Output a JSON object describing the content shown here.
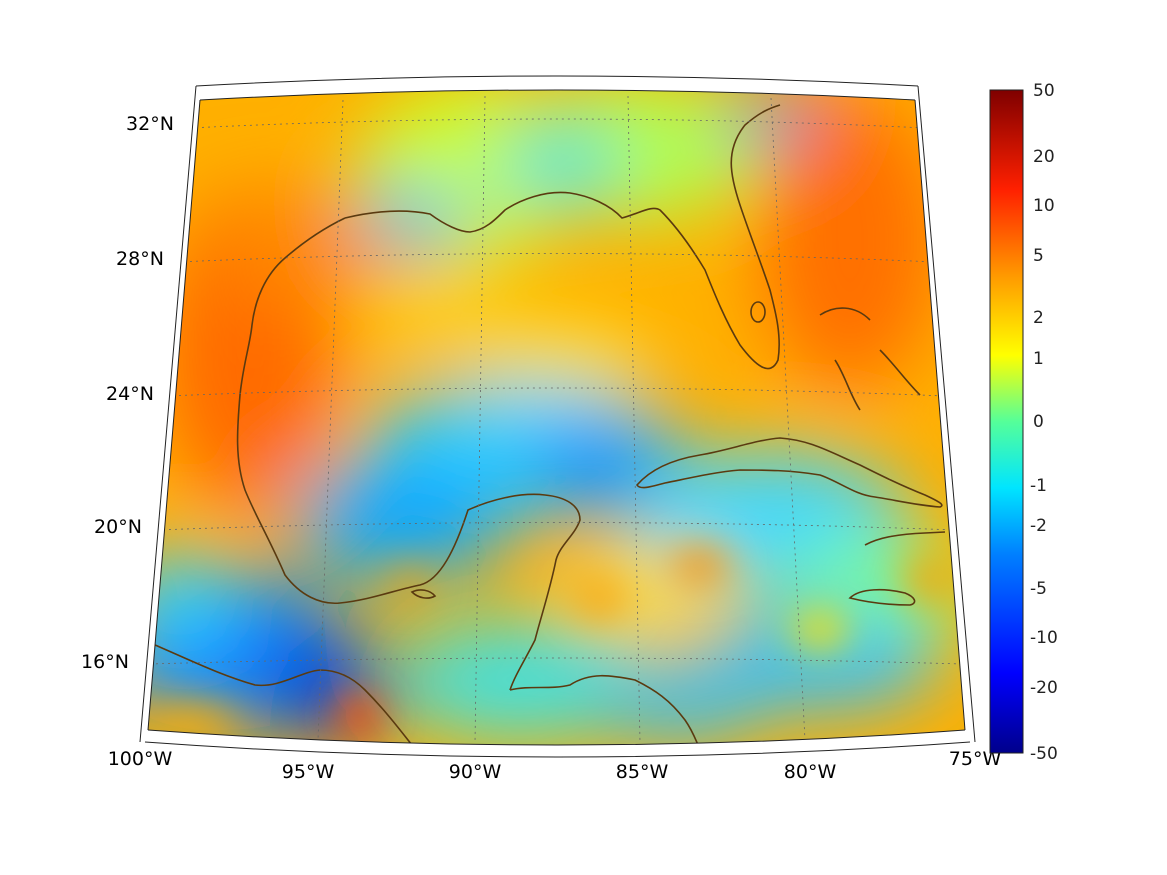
{
  "map": {
    "region": "Gulf of Mexico and Caribbean",
    "projection": "conic",
    "lon_range": [
      -100,
      -75
    ],
    "lat_range": [
      14,
      33
    ],
    "lon_ticks": [
      {
        "value": -100,
        "label": "100°W"
      },
      {
        "value": -95,
        "label": "95°W"
      },
      {
        "value": -90,
        "label": "90°W"
      },
      {
        "value": -85,
        "label": "85°W"
      },
      {
        "value": -80,
        "label": "80°W"
      },
      {
        "value": -75,
        "label": "75°W"
      }
    ],
    "lat_ticks": [
      {
        "value": 32,
        "label": "32°N"
      },
      {
        "value": 28,
        "label": "28°N"
      },
      {
        "value": 24,
        "label": "24°N"
      },
      {
        "value": 20,
        "label": "20°N"
      },
      {
        "value": 16,
        "label": "16°N"
      }
    ],
    "graticule": "dotted",
    "coastline_color": "#5a3a10"
  },
  "colorbar": {
    "colormap": "jet",
    "scale": "nonlinear (symmetric log-like)",
    "ticks": [
      "50",
      "20",
      "10",
      "5",
      "2",
      "1",
      "0",
      "-1",
      "-2",
      "-5",
      "-10",
      "-20",
      "-50"
    ],
    "min": -50,
    "max": 50
  }
}
